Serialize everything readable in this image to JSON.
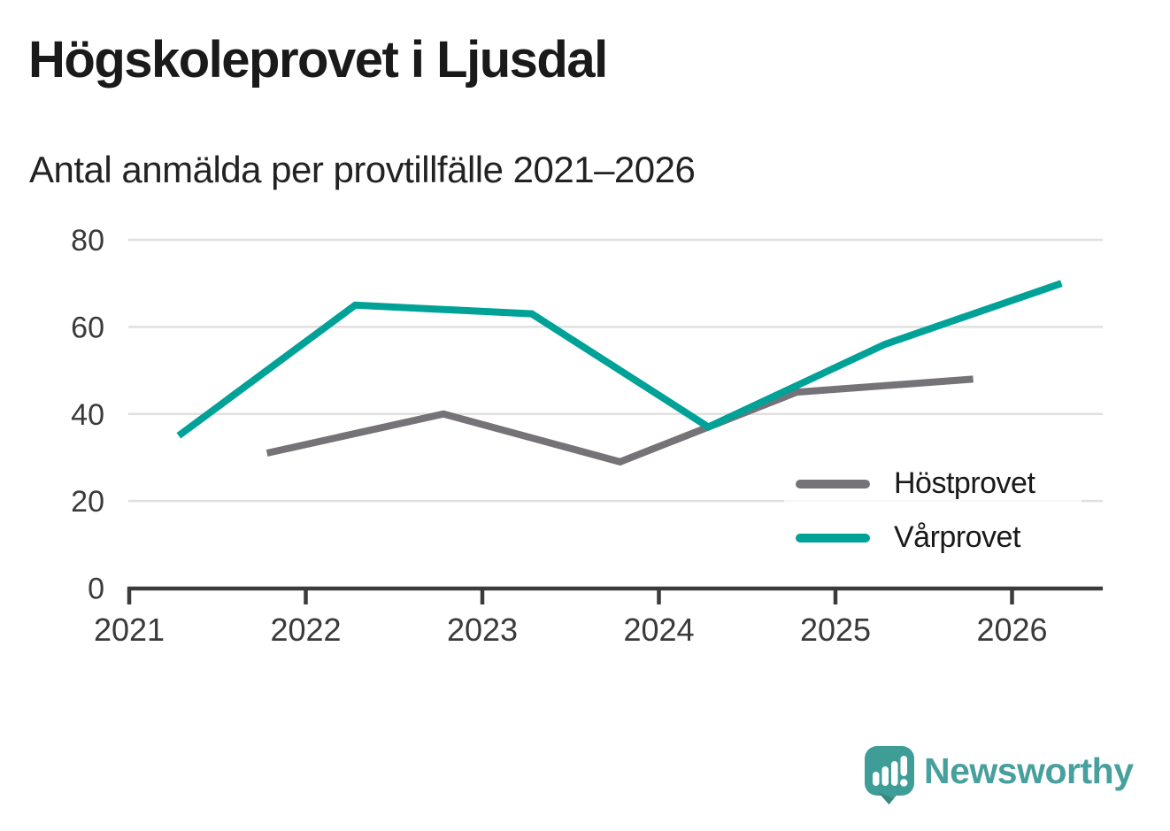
{
  "title": "Högskoleprovet i Ljusdal",
  "subtitle": "Antal anmälda per provtillfälle 2021–2026",
  "branding": {
    "logo_text": "Newsworthy",
    "logo_icon": "newsworthy-speech-bubble-bar-chart-icon",
    "logo_color": "#47a09e",
    "logo_bubble_color": "#3e9e97"
  },
  "colors": {
    "grid": "#e0e0e0",
    "axis": "#3b3b3b",
    "tick_label": "#3a3a3a",
    "legend_background": "rgba(255,255,255,0.72)"
  },
  "chart_data": {
    "type": "line",
    "x": [
      2021,
      2022,
      2023,
      2024,
      2025,
      2026
    ],
    "series": [
      {
        "name": "Höstprovet",
        "color": "#757378",
        "season_offset": 0.78,
        "values": [
          31,
          40,
          29,
          45,
          48,
          null
        ]
      },
      {
        "name": "Vårprovet",
        "color": "#00a298",
        "season_offset": 0.28,
        "values": [
          35,
          65,
          63,
          37,
          56,
          70
        ]
      }
    ],
    "title": "Högskoleprovet i Ljusdal",
    "subtitle": "Antal anmälda per provtillfälle 2021–2026",
    "xlabel": "",
    "ylabel": "",
    "ylim": [
      0,
      80
    ],
    "yticks": [
      0,
      20,
      40,
      60,
      80
    ],
    "xticks": [
      2021,
      2022,
      2023,
      2024,
      2025,
      2026
    ],
    "grid": "horizontal",
    "legend_position": "inside-right",
    "line_width": 8
  }
}
